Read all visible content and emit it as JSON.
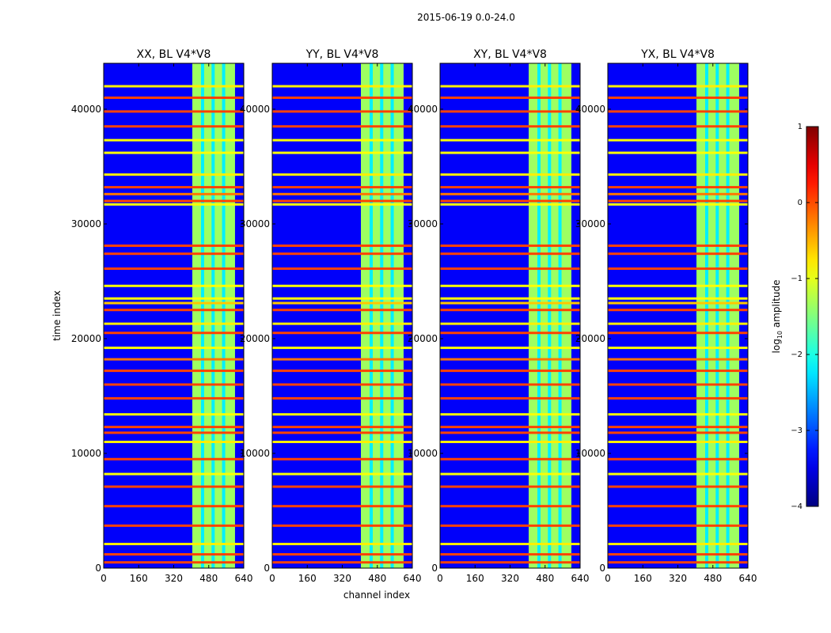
{
  "figure_title": "2015-06-19 0.0-24.0",
  "colormap": "jet",
  "chart_data": [
    {
      "type": "heatmap",
      "title": "XX, BL V4*V8",
      "xlabel": "",
      "ylabel": "time index",
      "x_range": [
        0,
        640
      ],
      "y_range": [
        0,
        44000
      ],
      "xticks": [
        0,
        160,
        320,
        480,
        640
      ],
      "yticks": [
        0,
        10000,
        20000,
        30000,
        40000
      ],
      "z_label": "log10 amplitude",
      "z_range": [
        -4,
        1
      ]
    },
    {
      "type": "heatmap",
      "title": "YY, BL V4*V8",
      "xlabel": "channel index",
      "ylabel": "",
      "x_range": [
        0,
        640
      ],
      "y_range": [
        0,
        44000
      ],
      "xticks": [
        0,
        160,
        320,
        480,
        640
      ],
      "yticks": [
        0,
        10000,
        20000,
        30000,
        40000
      ],
      "z_label": "log10 amplitude",
      "z_range": [
        -4,
        1
      ]
    },
    {
      "type": "heatmap",
      "title": "XY, BL V4*V8",
      "xlabel": "",
      "ylabel": "",
      "x_range": [
        0,
        640
      ],
      "y_range": [
        0,
        44000
      ],
      "xticks": [
        0,
        160,
        320,
        480,
        640
      ],
      "yticks": [
        0,
        10000,
        20000,
        30000,
        40000
      ],
      "z_label": "log10 amplitude",
      "z_range": [
        -4,
        1
      ]
    },
    {
      "type": "heatmap",
      "title": "YX, BL V4*V8",
      "xlabel": "",
      "ylabel": "",
      "x_range": [
        0,
        640
      ],
      "y_range": [
        0,
        44000
      ],
      "xticks": [
        0,
        160,
        320,
        480,
        640
      ],
      "yticks": [
        0,
        10000,
        20000,
        30000,
        40000
      ],
      "z_label": "log10 amplitude",
      "z_range": [
        -4,
        1
      ]
    }
  ],
  "colorbar": {
    "label_prefix": "log",
    "label_sub": "10",
    "label_suffix": " amplitude",
    "ticks": [
      1,
      0,
      -1,
      -2,
      -3,
      -4
    ],
    "tick_labels": [
      "1",
      "0",
      "−1",
      "−2",
      "−3",
      "−4"
    ],
    "vmin": -4,
    "vmax": 1
  },
  "features": {
    "band_channels": [
      [
        405,
        600
      ]
    ],
    "band_level": -1.35,
    "band_dividers": [
      452,
      500,
      548
    ],
    "background_level": -3.4,
    "rfi_rows": [
      {
        "t": 42000,
        "level": -0.8
      },
      {
        "t": 41000,
        "level": 0.05
      },
      {
        "t": 39800,
        "level": 0.05
      },
      {
        "t": 38500,
        "level": 0.05
      },
      {
        "t": 37300,
        "level": -0.9
      },
      {
        "t": 36200,
        "level": -0.9
      },
      {
        "t": 34300,
        "level": -0.8
      },
      {
        "t": 33200,
        "level": 0.05
      },
      {
        "t": 32600,
        "level": -0.2
      },
      {
        "t": 32000,
        "level": 0.05
      },
      {
        "t": 31700,
        "level": -0.9
      },
      {
        "t": 28100,
        "level": 0.05
      },
      {
        "t": 27400,
        "level": 0.05
      },
      {
        "t": 26100,
        "level": 0.05
      },
      {
        "t": 24600,
        "level": -0.9
      },
      {
        "t": 23500,
        "level": -0.9
      },
      {
        "t": 23100,
        "level": -0.6
      },
      {
        "t": 22500,
        "level": 0.05
      },
      {
        "t": 21300,
        "level": -0.8
      },
      {
        "t": 20500,
        "level": 0.05
      },
      {
        "t": 19200,
        "level": -0.9
      },
      {
        "t": 18200,
        "level": -0.2
      },
      {
        "t": 17200,
        "level": 0.05
      },
      {
        "t": 16000,
        "level": 0.05
      },
      {
        "t": 14800,
        "level": 0.05
      },
      {
        "t": 13400,
        "level": -0.9
      },
      {
        "t": 12300,
        "level": 0.05
      },
      {
        "t": 11800,
        "level": 0.05
      },
      {
        "t": 11000,
        "level": -0.8
      },
      {
        "t": 9500,
        "level": 0.05
      },
      {
        "t": 8200,
        "level": -0.9
      },
      {
        "t": 7100,
        "level": 0.05
      },
      {
        "t": 5400,
        "level": 0.05
      },
      {
        "t": 3700,
        "level": 0.05
      },
      {
        "t": 2100,
        "level": -0.8
      },
      {
        "t": 1200,
        "level": 0.05
      },
      {
        "t": 500,
        "level": 0.05
      }
    ]
  }
}
